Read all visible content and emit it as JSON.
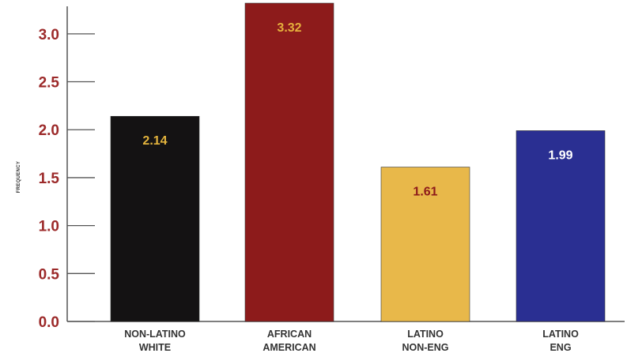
{
  "chart_data": {
    "type": "bar",
    "ylabel": "FREQUENCY",
    "xlabel": "",
    "ylim": [
      0,
      3.32
    ],
    "yticks": [
      "0.0",
      "0.5",
      "1.0",
      "1.5",
      "2.0",
      "2.5",
      "3.0"
    ],
    "grid": false,
    "categories": [
      [
        "NON-LATINO",
        "WHITE"
      ],
      [
        "AFRICAN",
        "AMERICAN"
      ],
      [
        "LATINO",
        "NON-ENG"
      ],
      [
        "LATINO",
        "ENG"
      ]
    ],
    "values": [
      2.14,
      3.32,
      1.61,
      1.99
    ],
    "value_labels": [
      "2.14",
      "3.32",
      "1.61",
      "1.99"
    ]
  },
  "colors": {
    "bars": [
      "#141213",
      "#8d1b1b",
      "#e8b84a",
      "#2a2f92"
    ],
    "value_labels": [
      "#e3b33d",
      "#e5b03c",
      "#8d1b1b",
      "#ffffff"
    ],
    "tick_labels": "#9c2a2a",
    "category_labels": "#333333",
    "axis": "#555555"
  }
}
